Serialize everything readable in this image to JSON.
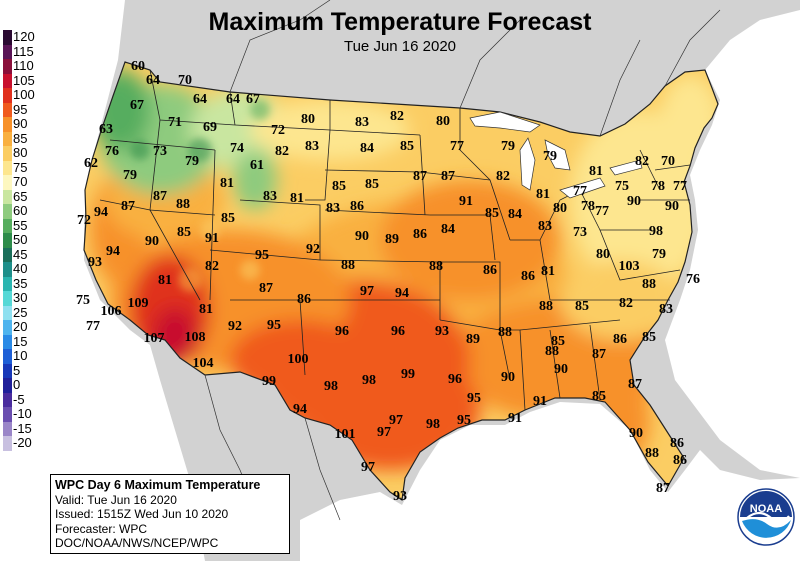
{
  "title": "Maximum Temperature Forecast",
  "subtitle": "Tue Jun 16 2020",
  "legend": [
    {
      "label": "120",
      "color": "#2b0a32"
    },
    {
      "label": "115",
      "color": "#5a1456"
    },
    {
      "label": "110",
      "color": "#8a0f3a"
    },
    {
      "label": "105",
      "color": "#c8102e"
    },
    {
      "label": "100",
      "color": "#e0301e"
    },
    {
      "label": "95",
      "color": "#f05a1e"
    },
    {
      "label": "90",
      "color": "#f7912a"
    },
    {
      "label": "85",
      "color": "#f9b040"
    },
    {
      "label": "80",
      "color": "#fbcd63"
    },
    {
      "label": "75",
      "color": "#fde68f"
    },
    {
      "label": "70",
      "color": "#fdf7c0"
    },
    {
      "label": "65",
      "color": "#c9e6a0"
    },
    {
      "label": "60",
      "color": "#8ecb7e"
    },
    {
      "label": "55",
      "color": "#57ad5e"
    },
    {
      "label": "50",
      "color": "#2e8c4a"
    },
    {
      "label": "45",
      "color": "#1b6f5a"
    },
    {
      "label": "40",
      "color": "#1e8f8a"
    },
    {
      "label": "35",
      "color": "#2bb5b0"
    },
    {
      "label": "30",
      "color": "#56d8d6"
    },
    {
      "label": "25",
      "color": "#8fe0f0"
    },
    {
      "label": "20",
      "color": "#4fb4ee"
    },
    {
      "label": "15",
      "color": "#2a8ae6"
    },
    {
      "label": "10",
      "color": "#1e5fd6"
    },
    {
      "label": "5",
      "color": "#1838b8"
    },
    {
      "label": "0",
      "color": "#20209a"
    },
    {
      "label": "-5",
      "color": "#4a2c9e"
    },
    {
      "label": "-10",
      "color": "#6a4eb0"
    },
    {
      "label": "-15",
      "color": "#9a86c8"
    },
    {
      "label": "-20",
      "color": "#c8c0e0"
    }
  ],
  "info": {
    "heading": "WPC Day 6 Maximum Temperature",
    "valid": "Valid: Tue Jun 16 2020",
    "issued": "Issued: 1515Z Wed Jun 10 2020",
    "forecaster": "Forecaster: WPC",
    "agency": "DOC/NOAA/NWS/NCEP/WPC"
  },
  "logo": {
    "text": "NOAA"
  },
  "temperatures": [
    "60",
    "64",
    "70",
    "64",
    "64",
    "67",
    "67",
    "71",
    "69",
    "72",
    "80",
    "83",
    "82",
    "80",
    "63",
    "76",
    "73",
    "79",
    "74",
    "82",
    "83",
    "84",
    "85",
    "77",
    "79",
    "79",
    "81",
    "82",
    "70",
    "62",
    "79",
    "61",
    "81",
    "85",
    "85",
    "87",
    "87",
    "82",
    "83",
    "81",
    "77",
    "75",
    "78",
    "77",
    "72",
    "94",
    "87",
    "87",
    "88",
    "83",
    "86",
    "91",
    "85",
    "84",
    "81",
    "80",
    "78",
    "77",
    "90",
    "90",
    "85",
    "90",
    "85",
    "91",
    "90",
    "89",
    "86",
    "84",
    "83",
    "73",
    "98",
    "94",
    "92",
    "79",
    "93",
    "82",
    "95",
    "88",
    "88",
    "86",
    "86",
    "81",
    "80",
    "103",
    "81",
    "88",
    "97",
    "94",
    "76",
    "109",
    "87",
    "86",
    "88",
    "85",
    "82",
    "75",
    "106",
    "81",
    "83",
    "77",
    "92",
    "95",
    "96",
    "96",
    "93",
    "89",
    "88",
    "107",
    "108",
    "85",
    "87",
    "86",
    "85",
    "88",
    "104",
    "100",
    "90",
    "99",
    "98",
    "98",
    "99",
    "96",
    "90",
    "87",
    "95",
    "91",
    "85",
    "94",
    "97",
    "98",
    "95",
    "91",
    "101",
    "97",
    "90",
    "86",
    "88",
    "86",
    "97",
    "87",
    "93"
  ]
}
